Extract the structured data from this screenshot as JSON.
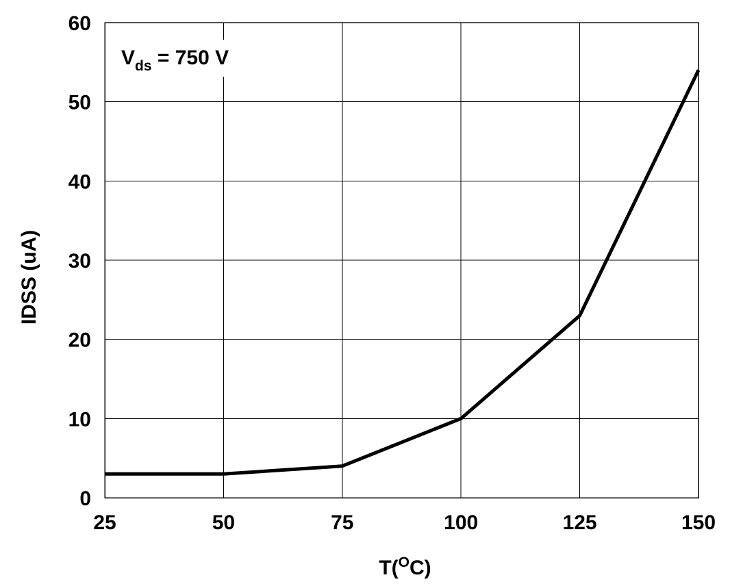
{
  "chart_data": {
    "type": "line",
    "title": "",
    "xlabel": "T(",
    "xlabel_superscript": "O",
    "xlabel_suffix": "C)",
    "ylabel": "IDSS (uA)",
    "xlim": [
      25,
      150
    ],
    "ylim": [
      0,
      60
    ],
    "x_ticks": [
      25,
      50,
      75,
      100,
      125,
      150
    ],
    "y_ticks": [
      0,
      10,
      20,
      30,
      40,
      50,
      60
    ],
    "grid": true,
    "annotation": {
      "main": "V",
      "subscript": "ds",
      "suffix": " = 750 V",
      "placement": "top-left"
    },
    "series": [
      {
        "color": "#000000",
        "x": [
          25,
          50,
          75,
          100,
          125,
          150
        ],
        "y": [
          3,
          3,
          4,
          10,
          23,
          54
        ]
      }
    ]
  }
}
